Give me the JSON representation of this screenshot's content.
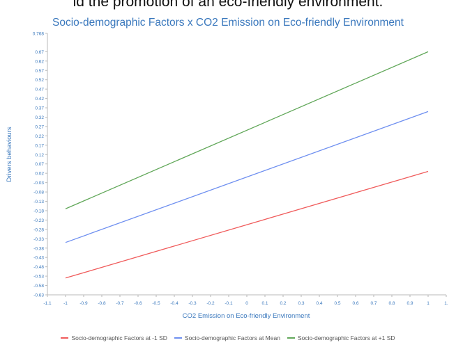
{
  "page_caption": "ld the promotion of an eco-friendly environment.",
  "chart_data": {
    "type": "line",
    "title": "Socio-demographic Factors x CO2 Emission on Eco-friendly Environment",
    "xlabel": "CO2 Emission on Eco-friendly Environment",
    "ylabel": "Drivers behaviours",
    "xlim": [
      -1.1,
      1.1
    ],
    "ylim": [
      -0.63,
      0.768
    ],
    "x_ticks": [
      "-1.1",
      "-1",
      "-0.9",
      "-0.8",
      "-0.7",
      "-0.6",
      "-0.5",
      "-0.4",
      "-0.3",
      "-0.2",
      "-0.1",
      "0",
      "0.1",
      "0.2",
      "0.3",
      "0.4",
      "0.5",
      "0.6",
      "0.7",
      "0.8",
      "0.9",
      "1",
      "1."
    ],
    "y_ticks": [
      "0.768",
      "0.67",
      "0.62",
      "0.57",
      "0.52",
      "0.47",
      "0.42",
      "0.37",
      "0.32",
      "0.27",
      "0.22",
      "0.17",
      "0.12",
      "0.07",
      "0.02",
      "-0.03",
      "-0.08",
      "-0.13",
      "-0.18",
      "-0.23",
      "-0.28",
      "-0.33",
      "-0.38",
      "-0.43",
      "-0.48",
      "-0.53",
      "-0.58",
      "-0.63"
    ],
    "grid": false,
    "legend_position": "bottom",
    "series": [
      {
        "name": "Socio-demographic Factors at -1 SD",
        "color": "#f05b5b",
        "x": [
          -1,
          1
        ],
        "y": [
          -0.54,
          0.03
        ]
      },
      {
        "name": "Socio-demographic Factors at Mean",
        "color": "#6e8ff0",
        "x": [
          -1,
          1
        ],
        "y": [
          -0.35,
          0.35
        ]
      },
      {
        "name": "Socio-demographic Factors at +1 SD",
        "color": "#62a85a",
        "x": [
          -1,
          1
        ],
        "y": [
          -0.17,
          0.67
        ]
      }
    ]
  }
}
